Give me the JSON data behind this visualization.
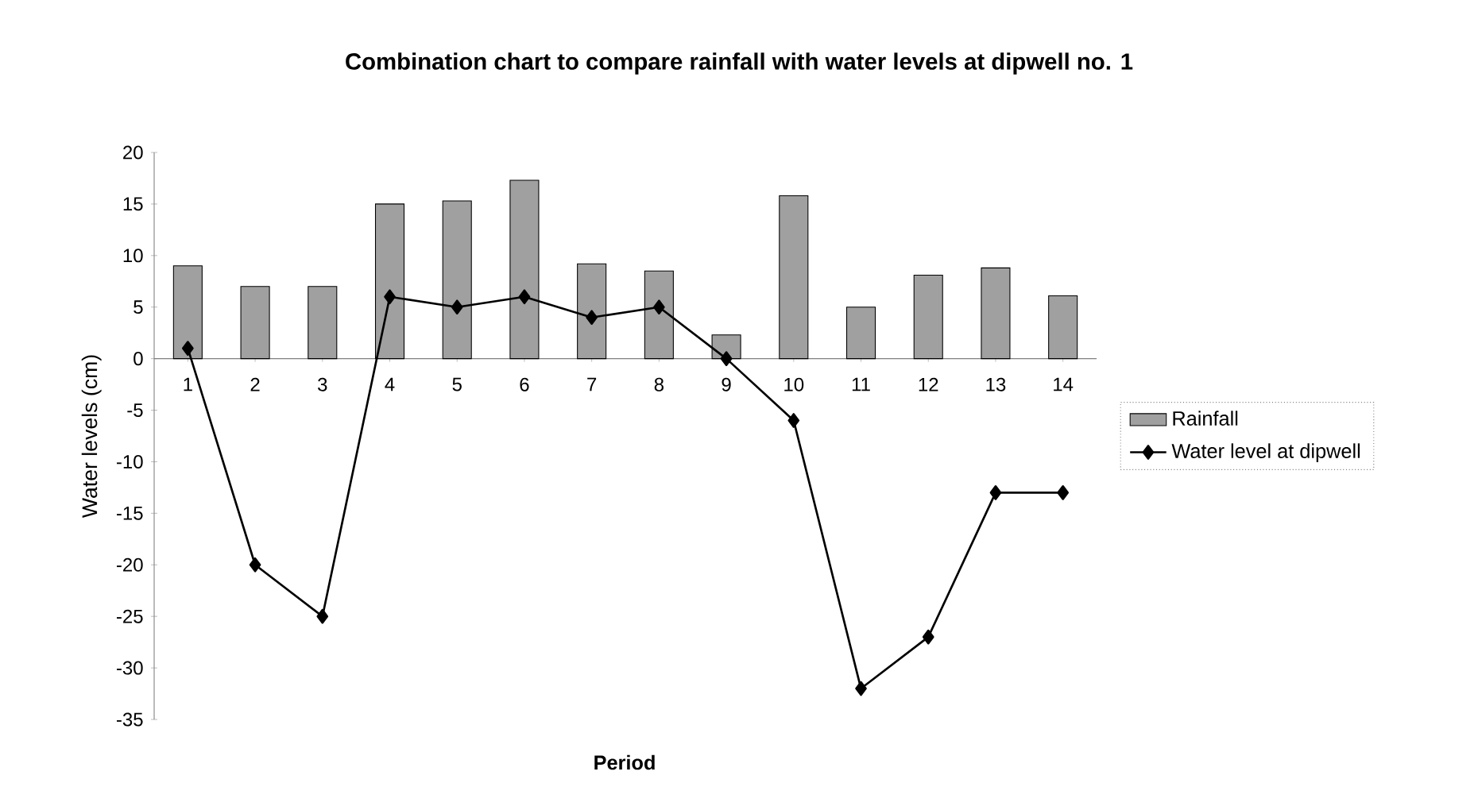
{
  "chart_data": {
    "type": "bar",
    "title": "Combination chart to compare rainfall with water levels at dipwell no. 1",
    "xlabel": "Period",
    "ylabel": "Water levels (cm)",
    "categories": [
      "1",
      "2",
      "3",
      "4",
      "5",
      "6",
      "7",
      "8",
      "9",
      "10",
      "11",
      "12",
      "13",
      "14"
    ],
    "series": [
      {
        "name": "Rainfall",
        "color": "#a0a0a0",
        "values": [
          9,
          7,
          7,
          15,
          15.3,
          17.3,
          9.2,
          8.5,
          2.3,
          15.8,
          5,
          8.1,
          8.8,
          6.1
        ]
      },
      {
        "name": "Water level at dipwell",
        "type": "line",
        "color": "#000000",
        "marker": "diamond",
        "values": [
          1,
          -20,
          -25,
          6,
          5,
          6,
          4,
          5,
          0,
          -6,
          -32,
          -27,
          -13,
          -13
        ]
      }
    ],
    "ylim": [
      -35,
      20
    ],
    "yticks": [
      -35,
      -30,
      -25,
      -20,
      -15,
      -10,
      -5,
      0,
      5,
      10,
      15,
      20
    ],
    "grid": false,
    "legend": "right"
  }
}
